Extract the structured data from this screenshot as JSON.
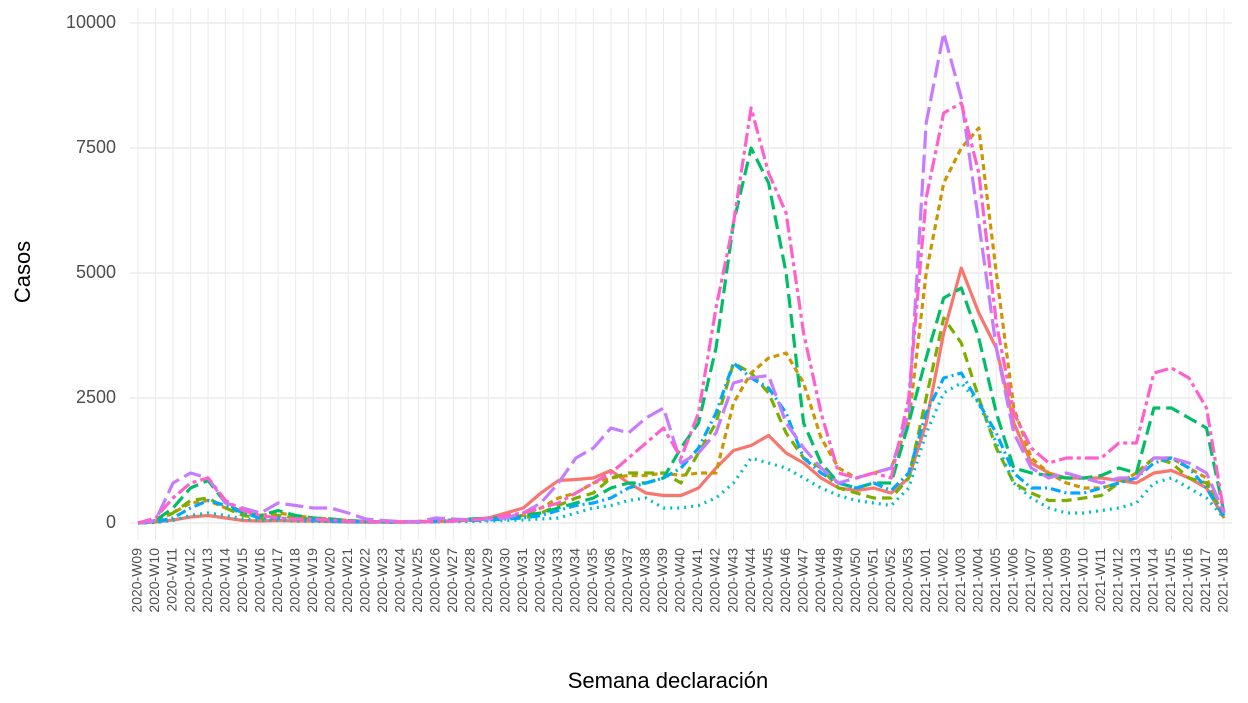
{
  "chart_data": {
    "type": "line",
    "x_label": "Semana declaración",
    "y_label": "Casos",
    "categories": [
      "2020-W09",
      "2020-W10",
      "2020-W11",
      "2020-W12",
      "2020-W13",
      "2020-W14",
      "2020-W15",
      "2020-W16",
      "2020-W17",
      "2020-W18",
      "2020-W19",
      "2020-W20",
      "2020-W21",
      "2020-W22",
      "2020-W23",
      "2020-W24",
      "2020-W25",
      "2020-W26",
      "2020-W27",
      "2020-W28",
      "2020-W29",
      "2020-W30",
      "2020-W31",
      "2020-W32",
      "2020-W33",
      "2020-W34",
      "2020-W35",
      "2020-W36",
      "2020-W37",
      "2020-W38",
      "2020-W39",
      "2020-W40",
      "2020-W41",
      "2020-W42",
      "2020-W43",
      "2020-W44",
      "2020-W45",
      "2020-W46",
      "2020-W47",
      "2020-W48",
      "2020-W49",
      "2020-W50",
      "2020-W51",
      "2020-W52",
      "2020-W53",
      "2021-W01",
      "2021-W02",
      "2021-W03",
      "2021-W04",
      "2021-W05",
      "2021-W06",
      "2021-W07",
      "2021-W08",
      "2021-W09",
      "2021-W10",
      "2021-W11",
      "2021-W12",
      "2021-W13",
      "2021-W14",
      "2021-W15",
      "2021-W16",
      "2021-W17",
      "2021-W18"
    ],
    "ylim": [
      -340,
      10300
    ],
    "yticks": [
      0,
      2500,
      5000,
      7500,
      10000
    ],
    "grid": true,
    "series": [
      {
        "color": "#F8766D",
        "linetype": "solid",
        "values": [
          0,
          20,
          60,
          120,
          150,
          100,
          50,
          40,
          50,
          40,
          40,
          30,
          20,
          20,
          20,
          20,
          20,
          30,
          40,
          60,
          100,
          200,
          300,
          600,
          850,
          870,
          900,
          1050,
          800,
          600,
          550,
          550,
          700,
          1100,
          1450,
          1550,
          1750,
          1400,
          1200,
          900,
          700,
          650,
          700,
          600,
          900,
          2000,
          3800,
          5100,
          4200,
          3500,
          2000,
          1200,
          1000,
          900,
          900,
          900,
          850,
          800,
          1000,
          1050,
          900,
          700,
          100
        ]
      },
      {
        "color": "#CD9600",
        "linetype": "6 4",
        "values": [
          0,
          40,
          200,
          400,
          450,
          300,
          200,
          150,
          200,
          150,
          100,
          80,
          50,
          30,
          20,
          20,
          30,
          40,
          50,
          70,
          100,
          120,
          150,
          300,
          500,
          600,
          800,
          900,
          950,
          950,
          1000,
          950,
          1000,
          1000,
          2400,
          3000,
          3300,
          3400,
          2800,
          1700,
          1100,
          900,
          1000,
          1100,
          2000,
          5000,
          6800,
          7500,
          7900,
          5000,
          2300,
          1300,
          1000,
          800,
          700,
          700,
          800,
          1000,
          1300,
          1300,
          1100,
          900,
          100
        ]
      },
      {
        "color": "#7CAE00",
        "linetype": "10 6",
        "values": [
          0,
          30,
          200,
          450,
          500,
          300,
          150,
          100,
          150,
          100,
          80,
          60,
          40,
          20,
          20,
          20,
          20,
          30,
          40,
          60,
          80,
          100,
          100,
          200,
          350,
          500,
          600,
          900,
          1000,
          1000,
          1000,
          800,
          1400,
          2000,
          3200,
          3000,
          2600,
          1800,
          1300,
          1100,
          700,
          600,
          500,
          500,
          900,
          2500,
          4100,
          3600,
          2500,
          1500,
          800,
          600,
          450,
          450,
          500,
          550,
          800,
          1000,
          1300,
          1200,
          900,
          800,
          100
        ]
      },
      {
        "color": "#00BE67",
        "linetype": "14 6",
        "values": [
          0,
          50,
          300,
          700,
          850,
          400,
          200,
          150,
          250,
          150,
          100,
          80,
          50,
          30,
          20,
          20,
          30,
          50,
          60,
          80,
          100,
          100,
          150,
          200,
          300,
          400,
          500,
          700,
          800,
          800,
          900,
          1500,
          2000,
          3500,
          6000,
          7500,
          6800,
          5000,
          2000,
          1200,
          800,
          700,
          800,
          800,
          2000,
          3300,
          4500,
          4700,
          3700,
          2200,
          1100,
          1000,
          950,
          900,
          900,
          950,
          1100,
          1000,
          2300,
          2300,
          2100,
          1900,
          200
        ]
      },
      {
        "color": "#00BFC4",
        "linetype": "2 5",
        "values": [
          0,
          10,
          50,
          150,
          200,
          150,
          80,
          50,
          50,
          40,
          30,
          30,
          20,
          20,
          20,
          20,
          20,
          20,
          30,
          30,
          40,
          50,
          60,
          80,
          100,
          200,
          300,
          350,
          450,
          500,
          300,
          300,
          350,
          500,
          800,
          1300,
          1200,
          1100,
          900,
          700,
          550,
          450,
          400,
          350,
          700,
          1800,
          2600,
          2800,
          2400,
          1600,
          800,
          500,
          300,
          200,
          200,
          250,
          300,
          400,
          800,
          900,
          700,
          500,
          100
        ]
      },
      {
        "color": "#00A9FF",
        "linetype": "10 4 2 4",
        "values": [
          0,
          20,
          100,
          300,
          450,
          350,
          200,
          100,
          100,
          80,
          60,
          40,
          30,
          20,
          20,
          20,
          20,
          30,
          40,
          50,
          60,
          80,
          100,
          150,
          250,
          350,
          400,
          500,
          700,
          800,
          900,
          1100,
          1500,
          2200,
          3200,
          2900,
          2700,
          2200,
          1300,
          1000,
          800,
          700,
          800,
          650,
          1000,
          2200,
          2900,
          3000,
          2400,
          1800,
          1000,
          700,
          700,
          600,
          600,
          700,
          800,
          900,
          1200,
          1300,
          1100,
          700,
          150
        ]
      },
      {
        "color": "#C77CFF",
        "linetype": "18 6",
        "values": [
          0,
          50,
          800,
          1000,
          900,
          400,
          300,
          200,
          400,
          350,
          300,
          300,
          200,
          80,
          50,
          30,
          30,
          100,
          80,
          60,
          80,
          100,
          200,
          400,
          800,
          1300,
          1500,
          1900,
          1800,
          2100,
          2300,
          1200,
          1400,
          1800,
          2800,
          2900,
          2950,
          2000,
          1500,
          1100,
          800,
          900,
          1000,
          1100,
          2200,
          8000,
          9800,
          8500,
          6000,
          3500,
          1800,
          1100,
          900,
          1000,
          900,
          800,
          900,
          900,
          1300,
          1300,
          1200,
          1000,
          200
        ]
      },
      {
        "color": "#FF61CC",
        "linetype": "14 4 4 4",
        "values": [
          0,
          100,
          500,
          800,
          900,
          450,
          250,
          150,
          100,
          80,
          80,
          60,
          40,
          30,
          20,
          20,
          20,
          30,
          40,
          60,
          100,
          150,
          200,
          300,
          400,
          600,
          800,
          1000,
          1300,
          1600,
          1900,
          1300,
          2200,
          4300,
          6000,
          8300,
          7000,
          6200,
          3800,
          2200,
          1000,
          900,
          1000,
          900,
          2500,
          6500,
          8200,
          8400,
          7000,
          4000,
          2200,
          1500,
          1200,
          1300,
          1300,
          1300,
          1600,
          1600,
          3000,
          3100,
          2900,
          2300,
          200
        ]
      }
    ]
  }
}
